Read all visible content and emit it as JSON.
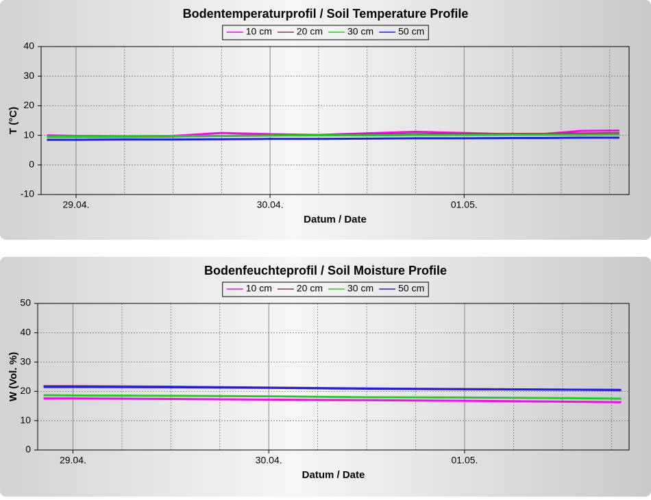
{
  "chart_data": [
    {
      "type": "line",
      "title": "Bodentemperaturprofil / Soil Temperature Profile",
      "xlabel": "Datum / Date",
      "ylabel": "T (°C)",
      "x": [
        -0.15,
        0,
        0.25,
        0.5,
        0.75,
        1.0,
        1.25,
        1.5,
        1.75,
        2.0,
        2.25,
        2.4,
        2.6,
        2.8
      ],
      "series": [
        {
          "name": "10 cm",
          "color": "#ff00ff",
          "values": [
            10.0,
            9.8,
            9.7,
            9.8,
            10.8,
            10.4,
            10.1,
            10.7,
            11.2,
            10.8,
            10.3,
            10.4,
            11.5,
            11.6
          ]
        },
        {
          "name": "20 cm",
          "color": "#8b3a3a",
          "values": [
            9.5,
            9.5,
            9.5,
            9.6,
            9.8,
            10.0,
            10.1,
            10.2,
            10.4,
            10.4,
            10.5,
            10.5,
            10.6,
            10.7
          ]
        },
        {
          "name": "30 cm",
          "color": "#22cc22",
          "values": [
            9.6,
            9.6,
            9.6,
            9.7,
            9.8,
            9.9,
            10.0,
            10.0,
            10.1,
            10.1,
            10.2,
            10.2,
            10.2,
            10.3
          ]
        },
        {
          "name": "50 cm",
          "color": "#1a1aff",
          "values": [
            8.5,
            8.5,
            8.6,
            8.6,
            8.7,
            8.8,
            8.8,
            8.9,
            9.0,
            9.0,
            9.1,
            9.1,
            9.2,
            9.2
          ]
        }
      ],
      "xlim": [
        -0.18,
        2.85
      ],
      "ylim": [
        -10,
        40
      ],
      "xticks": [
        {
          "value": 0,
          "label": "29.04."
        },
        {
          "value": 1,
          "label": "30.04."
        },
        {
          "value": 2,
          "label": "01.05."
        }
      ],
      "xminorticks": [
        0.25,
        0.5,
        0.75,
        1.25,
        1.5,
        1.75,
        2.25,
        2.5,
        2.75
      ],
      "yticks": [
        -10,
        0,
        10,
        20,
        30,
        40
      ],
      "grid": true
    },
    {
      "type": "line",
      "title": "Bodenfeuchteprofil / Soil Moisture Profile",
      "xlabel": "Datum / Date",
      "ylabel": "W (Vol. %)",
      "x": [
        -0.15,
        0,
        0.5,
        1.0,
        1.5,
        2.0,
        2.5,
        2.8
      ],
      "series": [
        {
          "name": "10 cm",
          "color": "#ff00ff",
          "values": [
            17.6,
            17.6,
            17.4,
            17.2,
            17.0,
            16.8,
            16.5,
            16.3
          ]
        },
        {
          "name": "20 cm",
          "color": "#8b3a3a",
          "values": [
            21.8,
            21.8,
            21.6,
            21.3,
            21.0,
            20.8,
            20.6,
            20.4
          ]
        },
        {
          "name": "30 cm",
          "color": "#22cc22",
          "values": [
            18.7,
            18.6,
            18.5,
            18.3,
            18.0,
            17.9,
            17.7,
            17.5
          ]
        },
        {
          "name": "50 cm",
          "color": "#1a1aff",
          "values": [
            21.5,
            21.5,
            21.4,
            21.2,
            20.9,
            20.7,
            20.6,
            20.5
          ]
        }
      ],
      "xlim": [
        -0.18,
        2.84
      ],
      "ylim": [
        0,
        50
      ],
      "xticks": [
        {
          "value": 0,
          "label": "29.04."
        },
        {
          "value": 1,
          "label": "30.04."
        },
        {
          "value": 2,
          "label": "01.05."
        }
      ],
      "xminorticks": [
        0.25,
        0.5,
        0.75,
        1.25,
        1.5,
        1.75,
        2.25,
        2.5,
        2.75
      ],
      "yticks": [
        0,
        10,
        20,
        30,
        40,
        50
      ],
      "grid": true
    }
  ]
}
